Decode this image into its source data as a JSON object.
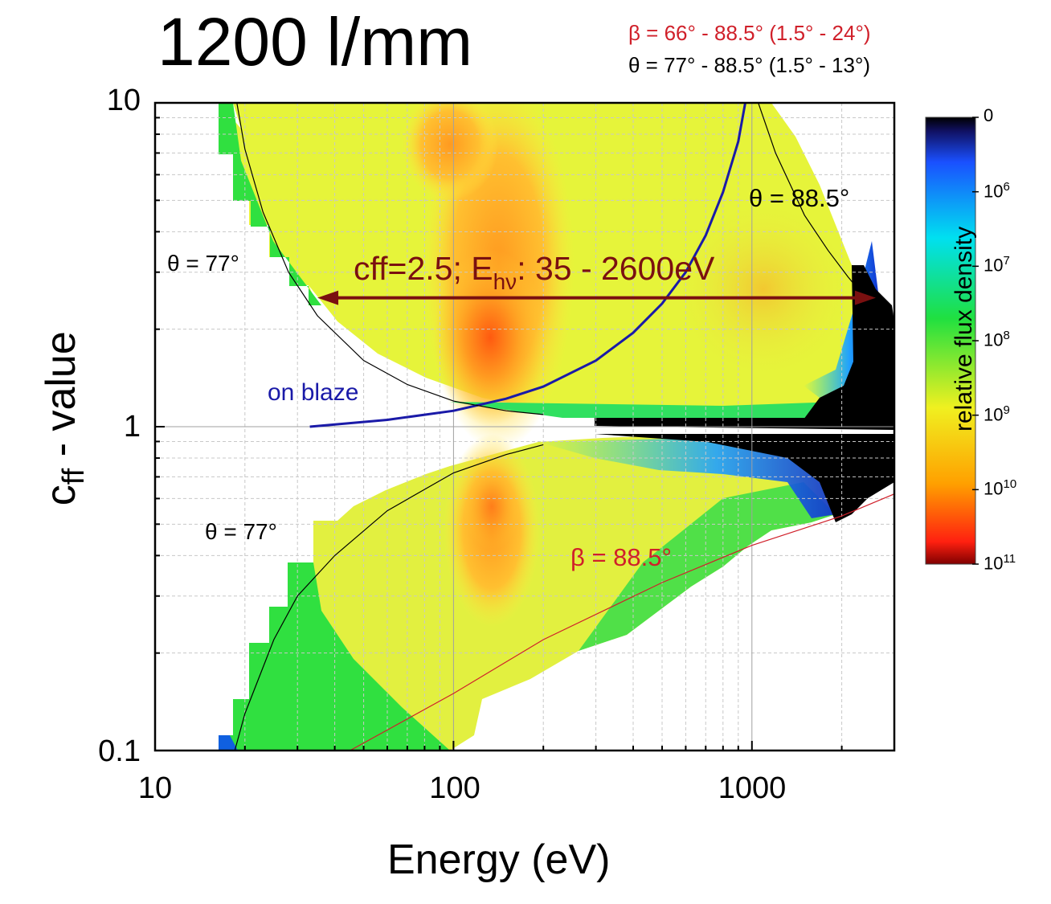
{
  "chart_data": {
    "type": "heatmap",
    "title": "1200 l/mm",
    "subtitle_beta": "β = 66° - 88.5° (1.5° - 24°)",
    "subtitle_theta": "θ = 77° - 88.5° (1.5° - 13°)",
    "xlabel": "Energy (eV)",
    "ylabel_main": "c",
    "ylabel_sub": "ff",
    "ylabel_rest": " - value",
    "x_scale": "log",
    "y_scale": "log",
    "xlim": [
      10,
      3000
    ],
    "ylim": [
      0.1,
      10
    ],
    "x_ticks": [
      "10",
      "100",
      "1000"
    ],
    "y_ticks": [
      "10",
      "1",
      "0.1"
    ],
    "colorbar": {
      "label": "relative flux density",
      "ticks": [
        {
          "base": "0",
          "exp": ""
        },
        {
          "base": "10",
          "exp": "6"
        },
        {
          "base": "10",
          "exp": "7"
        },
        {
          "base": "10",
          "exp": "8"
        },
        {
          "base": "10",
          "exp": "9"
        },
        {
          "base": "10",
          "exp": "10"
        },
        {
          "base": "10",
          "exp": "11"
        }
      ]
    },
    "annotations": {
      "theta_upper_left": "θ = 77°",
      "theta_upper_right": "θ = 88.5°",
      "theta_lower_left": "θ = 77°",
      "beta_lower": "β = 88.5°",
      "on_blaze": "on blaze",
      "cff_prefix": "cff=2.5; E",
      "cff_sub": "hν",
      "cff_suffix": ": 35 - 2600eV"
    },
    "series": [
      {
        "name": "on blaze",
        "color": "#1a1aa8",
        "x": [
          33,
          60,
          100,
          150,
          200,
          300,
          400,
          500,
          600,
          700,
          800,
          900,
          950
        ],
        "y": [
          1.0,
          1.05,
          1.12,
          1.22,
          1.33,
          1.6,
          1.95,
          2.4,
          3.0,
          3.9,
          5.3,
          7.6,
          10
        ]
      },
      {
        "name": "θ = 77° (upper)",
        "color": "#000000",
        "x": [
          18.8,
          20,
          23,
          28,
          35,
          50,
          70,
          100,
          150,
          200
        ],
        "y": [
          10,
          7.2,
          4.6,
          3.0,
          2.2,
          1.6,
          1.35,
          1.2,
          1.12,
          1.09
        ]
      },
      {
        "name": "θ = 88.5° (upper)",
        "color": "#000000",
        "x": [
          1050,
          1200,
          1500,
          1800,
          2100,
          2400,
          2700
        ],
        "y": [
          10,
          7.0,
          4.5,
          3.5,
          2.9,
          2.5,
          2.3
        ]
      },
      {
        "name": "θ = 77° (lower)",
        "color": "#000000",
        "x": [
          18.5,
          20,
          25,
          30,
          40,
          60,
          100,
          150,
          200
        ],
        "y": [
          0.1,
          0.13,
          0.22,
          0.3,
          0.4,
          0.55,
          0.72,
          0.82,
          0.88
        ]
      },
      {
        "name": "β = 88.5°",
        "color": "#d0202a",
        "x": [
          45,
          100,
          200,
          500,
          1000,
          2000,
          3000
        ],
        "y": [
          0.1,
          0.15,
          0.22,
          0.33,
          0.43,
          0.53,
          0.62
        ]
      }
    ],
    "arrow": {
      "label": "cff=2.5",
      "x": [
        35,
        2600
      ],
      "y": [
        2.5,
        2.5
      ],
      "color": "#7a1010"
    }
  }
}
